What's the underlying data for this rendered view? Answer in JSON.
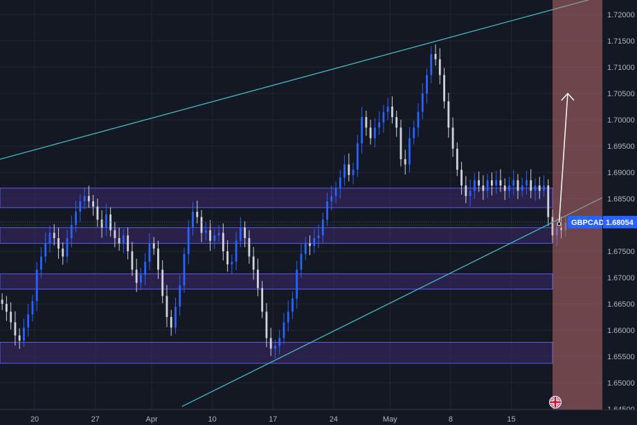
{
  "chart_data": {
    "type": "candlestick",
    "symbol": "GBPCAD",
    "last_price": "1.68054",
    "y_range": [
      1.645,
      1.7235
    ],
    "x_range": [
      0,
      139
    ],
    "y_tick_labels": [
      "1.72000",
      "1.71500",
      "1.71000",
      "1.70500",
      "1.70000",
      "1.69500",
      "1.69000",
      "1.68500",
      "1.68000",
      "1.67500",
      "1.67000",
      "1.66500",
      "1.66000",
      "1.65500",
      "1.65000",
      "1.64500"
    ],
    "x_ticks": [
      {
        "label": "20",
        "x": 8
      },
      {
        "label": "27",
        "x": 22
      },
      {
        "label": "Apr",
        "x": 35
      },
      {
        "label": "10",
        "x": 49
      },
      {
        "label": "17",
        "x": 63
      },
      {
        "label": "24",
        "x": 77
      },
      {
        "label": "May",
        "x": 90
      },
      {
        "label": "8",
        "x": 104
      },
      {
        "label": "15",
        "x": 118
      }
    ],
    "series": [
      {
        "values": [
          1.665,
          1.6635,
          1.6615,
          1.659,
          1.658,
          1.6605,
          1.663,
          1.6655,
          1.6715,
          1.674,
          1.6765,
          1.6785,
          1.6775,
          1.6755,
          1.674,
          1.6775,
          1.68,
          1.6825,
          1.6845,
          1.6855,
          1.6845,
          1.6835,
          1.681,
          1.6795,
          1.682,
          1.679,
          1.6775,
          1.6765,
          1.678,
          1.675,
          1.6715,
          1.669,
          1.6705,
          1.673,
          1.6765,
          1.6755,
          1.6715,
          1.6665,
          1.6625,
          1.6605,
          1.6645,
          1.6685,
          1.6745,
          1.6795,
          1.6825,
          1.6815,
          1.6785,
          1.679,
          1.677,
          1.678,
          1.6785,
          1.675,
          1.6725,
          1.673,
          1.677,
          1.6795,
          1.6775,
          1.674,
          1.6715,
          1.668,
          1.6635,
          1.6585,
          1.6565,
          1.657,
          1.6585,
          1.6615,
          1.6635,
          1.666,
          1.6715,
          1.6745,
          1.6765,
          1.676,
          1.6775,
          1.678,
          1.681,
          1.6845,
          1.6855,
          1.687,
          1.689,
          1.6915,
          1.6895,
          1.6905,
          1.6955,
          1.7005,
          1.6985,
          1.6965,
          1.6985,
          1.6995,
          1.7015,
          1.7025,
          1.7005,
          1.6985,
          1.6925,
          1.6915,
          1.6965,
          1.6985,
          1.7015,
          1.705,
          1.7085,
          1.7125,
          1.7115,
          1.7085,
          1.7035,
          1.6985,
          1.6945,
          1.6905,
          1.6875,
          1.6855,
          1.6865,
          1.6885,
          1.6875,
          1.6865,
          1.6885,
          1.6875,
          1.6885,
          1.6875,
          1.6865,
          1.6875,
          1.6885,
          1.6865,
          1.6875,
          1.6885,
          1.6865,
          1.6875,
          1.6865,
          1.6875,
          1.6815,
          1.678,
          1.6795,
          1.679,
          1.6805
        ]
      }
    ],
    "zones": [
      {
        "y_top": 1.687,
        "y_bottom": 1.6833
      },
      {
        "y_top": 1.6795,
        "y_bottom": 1.6765
      },
      {
        "y_top": 1.6707,
        "y_bottom": 1.6678
      },
      {
        "y_top": 1.6577,
        "y_bottom": 1.6537
      }
    ],
    "trendlines": [
      {
        "x1": 0,
        "y1": 1.6925,
        "x2": 139,
        "y2": 1.7235
      },
      {
        "x1": 42,
        "y1": 1.6455,
        "x2": 139,
        "y2": 1.6852
      }
    ],
    "projection_zone": {
      "x_start": 127.5,
      "x_end": 139
    },
    "projection_arrow": {
      "x1": 129,
      "y1": 1.6802,
      "x2": 131,
      "y2": 1.705
    }
  },
  "colors": {
    "background": "#141823",
    "grid": "#232733",
    "candle_up": "#2962ff",
    "candle_down": "#d1d4dc",
    "trendline": "#45b8c0",
    "zone_fill": "#3a2a6a",
    "zone_border": "#5c5cf0",
    "projection_fill": "#d97c7c",
    "price_tag": "#2962ff",
    "flag_icon": "flag-icon"
  }
}
